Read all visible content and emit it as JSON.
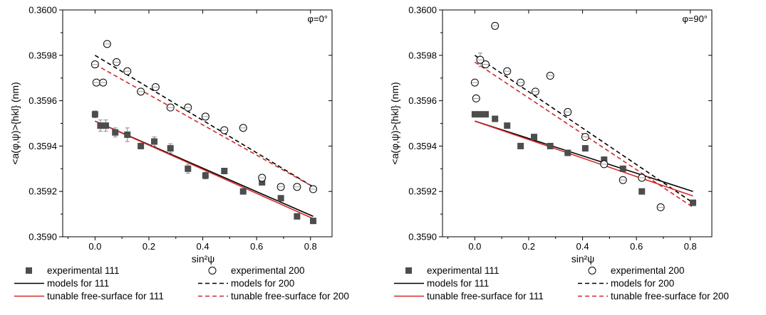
{
  "chart_data": [
    {
      "type": "scatter",
      "annotation": "φ=0°",
      "xlabel": "sin²ψ",
      "ylabel": "<a(φ,ψ)>{hkl} (nm)",
      "xlim": [
        -0.12,
        0.88
      ],
      "ylim": [
        0.359,
        0.36
      ],
      "xticks": [
        0.0,
        0.2,
        0.4,
        0.6,
        0.8
      ],
      "xtick_labels": [
        "0.0",
        "0.2",
        "0.4",
        "0.6",
        "0.8"
      ],
      "yticks": [
        0.359,
        0.3592,
        0.3594,
        0.3596,
        0.3598,
        0.36
      ],
      "ytick_labels": [
        "0.3590",
        "0.3592",
        "0.3594",
        "0.3596",
        "0.3598",
        "0.3600"
      ],
      "grid": false,
      "series": [
        {
          "name": "experimental 111",
          "kind": "points",
          "marker": "square",
          "color": "#4d4d4d",
          "x": [
            0.0,
            0.02,
            0.04,
            0.075,
            0.12,
            0.17,
            0.22,
            0.28,
            0.345,
            0.41,
            0.48,
            0.55,
            0.62,
            0.69,
            0.75,
            0.81
          ],
          "y": [
            0.35954,
            0.35949,
            0.35949,
            0.35946,
            0.35945,
            0.3594,
            0.35942,
            0.35939,
            0.3593,
            0.35927,
            0.35929,
            0.3592,
            0.35924,
            0.35917,
            0.35909,
            0.35907
          ],
          "err": [
            1.5e-05,
            2.5e-05,
            2.5e-05,
            2e-05,
            3e-05,
            1e-05,
            2e-05,
            2e-05,
            2e-05,
            1.5e-05,
            1e-05,
            1e-05,
            1e-05,
            1e-05,
            1e-05,
            1e-05
          ]
        },
        {
          "name": "experimental 200",
          "kind": "points",
          "marker": "circle",
          "color": "#000000",
          "x": [
            0.0,
            0.005,
            0.03,
            0.045,
            0.08,
            0.12,
            0.17,
            0.225,
            0.28,
            0.345,
            0.41,
            0.48,
            0.55,
            0.62,
            0.69,
            0.75,
            0.81
          ],
          "y": [
            0.35976,
            0.35968,
            0.35968,
            0.35985,
            0.35977,
            0.35973,
            0.35964,
            0.35966,
            0.35957,
            0.35957,
            0.35953,
            0.35947,
            0.35948,
            0.35926,
            0.35922,
            0.35922,
            0.35921
          ]
        },
        {
          "name": "models for 111",
          "kind": "line",
          "style": "solid",
          "color": "#000000",
          "x": [
            0.0,
            0.81
          ],
          "y": [
            0.35951,
            0.35909
          ]
        },
        {
          "name": "models for 200",
          "kind": "line",
          "style": "dashed",
          "color": "#000000",
          "x": [
            0.0,
            0.81
          ],
          "y": [
            0.3598,
            0.35922
          ]
        },
        {
          "name": "tunable free-surface for 111",
          "kind": "line",
          "style": "solid",
          "color": "#d62728",
          "x": [
            0.0,
            0.81
          ],
          "y": [
            0.35951,
            0.35908
          ]
        },
        {
          "name": "tunable free-surface for 200",
          "kind": "line",
          "style": "dashed",
          "color": "#d62728",
          "x": [
            0.0,
            0.81
          ],
          "y": [
            0.35976,
            0.35922
          ]
        }
      ]
    },
    {
      "type": "scatter",
      "annotation": "φ=90°",
      "xlabel": "sin²ψ",
      "ylabel": "<a(φ,ψ)>{hkl} (nm)",
      "xlim": [
        -0.12,
        0.88
      ],
      "ylim": [
        0.359,
        0.36
      ],
      "xticks": [
        0.0,
        0.2,
        0.4,
        0.6,
        0.8
      ],
      "xtick_labels": [
        "0.0",
        "0.2",
        "0.4",
        "0.6",
        "0.8"
      ],
      "yticks": [
        0.359,
        0.3592,
        0.3594,
        0.3596,
        0.3598,
        0.36
      ],
      "ytick_labels": [
        "0.3590",
        "0.3592",
        "0.3594",
        "0.3596",
        "0.3598",
        "0.3600"
      ],
      "grid": false,
      "series": [
        {
          "name": "experimental 111",
          "kind": "points",
          "marker": "square",
          "color": "#4d4d4d",
          "x": [
            0.0,
            0.02,
            0.04,
            0.075,
            0.12,
            0.17,
            0.22,
            0.28,
            0.345,
            0.41,
            0.48,
            0.55,
            0.62,
            0.81
          ],
          "y": [
            0.35954,
            0.35954,
            0.35954,
            0.35952,
            0.35949,
            0.3594,
            0.35944,
            0.3594,
            0.35937,
            0.35939,
            0.35934,
            0.3593,
            0.3592,
            0.35915
          ],
          "err": [
            1e-05,
            1e-05,
            1e-05,
            0.0,
            0.0,
            0.0,
            0.0,
            0.0,
            0.0,
            0.0,
            0.0,
            0.0,
            1e-05,
            0.0
          ]
        },
        {
          "name": "experimental 200",
          "kind": "points",
          "marker": "circle",
          "color": "#000000",
          "x": [
            0.0,
            0.005,
            0.02,
            0.04,
            0.075,
            0.12,
            0.17,
            0.225,
            0.28,
            0.345,
            0.41,
            0.48,
            0.55,
            0.62,
            0.69
          ],
          "y": [
            0.35968,
            0.35961,
            0.35978,
            0.35976,
            0.35993,
            0.35973,
            0.35968,
            0.35964,
            0.35971,
            0.35955,
            0.35944,
            0.35932,
            0.35925,
            0.35926,
            0.35913
          ],
          "err": [
            0.0,
            0.0,
            3e-05,
            0.0,
            0.0,
            0.0,
            0.0,
            0.0,
            0.0,
            0.0,
            0.0,
            0.0,
            0.0,
            0.0,
            0.0
          ]
        },
        {
          "name": "models for 111",
          "kind": "line",
          "style": "solid",
          "color": "#000000",
          "x": [
            0.0,
            0.81
          ],
          "y": [
            0.35951,
            0.3592
          ]
        },
        {
          "name": "models for 200",
          "kind": "line",
          "style": "dashed",
          "color": "#000000",
          "x": [
            0.0,
            0.81
          ],
          "y": [
            0.3598,
            0.35915
          ]
        },
        {
          "name": "tunable free-surface for 111",
          "kind": "line",
          "style": "solid",
          "color": "#d62728",
          "x": [
            0.0,
            0.81
          ],
          "y": [
            0.35951,
            0.35918
          ]
        },
        {
          "name": "tunable free-surface for 200",
          "kind": "line",
          "style": "dashed",
          "color": "#d62728",
          "x": [
            0.0,
            0.81
          ],
          "y": [
            0.35977,
            0.35913
          ]
        }
      ]
    }
  ],
  "legend": {
    "experimental_111": "experimental 111",
    "experimental_200": "experimental 200",
    "models_111": "models for 111",
    "models_200": "models for 200",
    "tunable_111": "tunable free-surface for 111",
    "tunable_200": "tunable free-surface for 200"
  }
}
